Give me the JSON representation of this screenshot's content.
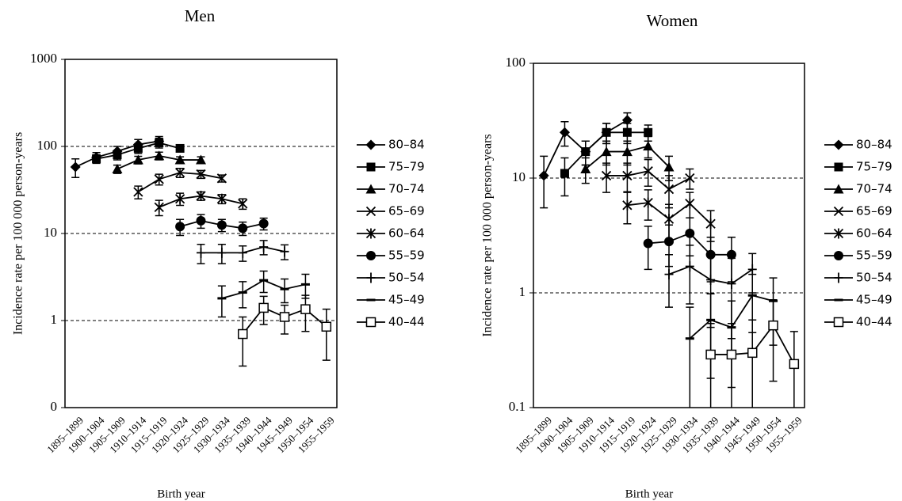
{
  "chart_data": [
    {
      "type": "line",
      "title": "Men",
      "xlabel": "Birth year",
      "ylabel": "Incidence rate per 100 000 person-years",
      "categories": [
        "1895–1899",
        "1900–1904",
        "1905–1909",
        "1910–1914",
        "1915–1919",
        "1920–1924",
        "1925–1929",
        "1930–1934",
        "1935–1939",
        "1940–1944",
        "1945–1949",
        "1950–1954",
        "1955–1959"
      ],
      "ylim": [
        0.1,
        1000
      ],
      "yticks": [
        {
          "value": 0.1,
          "label": "0"
        },
        1,
        10,
        100,
        1000
      ],
      "log_y": true,
      "grid": true,
      "series": [
        {
          "name": "80–84",
          "color": "#000",
          "marker": "diamond",
          "values": [
            58,
            75,
            88,
            105,
            115,
            null,
            null,
            null,
            null,
            null,
            null,
            null,
            null
          ],
          "errors": [
            14,
            10,
            12,
            15,
            15,
            null,
            null,
            null,
            null,
            null,
            null,
            null,
            null
          ]
        },
        {
          "name": "75–79",
          "color": "#000",
          "marker": "square",
          "values": [
            null,
            72,
            80,
            95,
            110,
            95,
            null,
            null,
            null,
            null,
            null,
            null,
            null
          ],
          "errors": [
            null,
            8,
            10,
            12,
            14,
            8,
            null,
            null,
            null,
            null,
            null,
            null,
            null
          ]
        },
        {
          "name": "70–74",
          "color": "#000",
          "marker": "triangle",
          "values": [
            null,
            null,
            55,
            70,
            78,
            70,
            70,
            null,
            null,
            null,
            null,
            null,
            null
          ],
          "errors": [
            null,
            null,
            6,
            7,
            8,
            6,
            6,
            null,
            null,
            null,
            null,
            null,
            null
          ]
        },
        {
          "name": "65–69",
          "color": "#000",
          "marker": "x",
          "values": [
            null,
            null,
            null,
            30,
            42,
            50,
            48,
            43,
            null,
            null,
            null,
            null,
            null
          ],
          "errors": [
            null,
            null,
            null,
            5,
            6,
            6,
            5,
            4,
            null,
            null,
            null,
            null,
            null
          ]
        },
        {
          "name": "60–64",
          "color": "#000",
          "marker": "star",
          "values": [
            null,
            null,
            null,
            null,
            20,
            25,
            27,
            25,
            22,
            null,
            null,
            null,
            null
          ],
          "errors": [
            null,
            null,
            null,
            null,
            4,
            4,
            3,
            3,
            3,
            null,
            null,
            null,
            null
          ]
        },
        {
          "name": "55–59",
          "color": "#000",
          "marker": "circle",
          "values": [
            null,
            null,
            null,
            null,
            null,
            12,
            14,
            12.5,
            11.5,
            13,
            null,
            null,
            null
          ],
          "errors": [
            null,
            null,
            null,
            null,
            null,
            2.5,
            2.5,
            2,
            2,
            2,
            null,
            null,
            null
          ]
        },
        {
          "name": "50–54",
          "color": "#000",
          "marker": "plus",
          "values": [
            null,
            null,
            null,
            null,
            null,
            null,
            6,
            6,
            6,
            7,
            6.2,
            null,
            null
          ],
          "errors": [
            null,
            null,
            null,
            null,
            null,
            null,
            1.5,
            1.5,
            1.2,
            1.3,
            1.2,
            null,
            null
          ]
        },
        {
          "name": "45–49",
          "color": "#000",
          "marker": "dash",
          "values": [
            null,
            null,
            null,
            null,
            null,
            null,
            null,
            1.8,
            2.1,
            2.9,
            2.3,
            2.6,
            null
          ],
          "errors": [
            null,
            null,
            null,
            null,
            null,
            null,
            null,
            0.7,
            0.7,
            0.8,
            0.7,
            0.8,
            null
          ]
        },
        {
          "name": "40–44",
          "color": "#000",
          "marker": "open-square",
          "values": [
            null,
            null,
            null,
            null,
            null,
            null,
            null,
            null,
            0.7,
            1.4,
            1.1,
            1.35,
            0.85
          ],
          "errors": [
            null,
            null,
            null,
            null,
            null,
            null,
            null,
            null,
            0.4,
            0.5,
            0.4,
            0.6,
            0.5
          ]
        }
      ]
    },
    {
      "type": "line",
      "title": "Women",
      "xlabel": "Birth year",
      "ylabel": "Incidence rate per 100 000 person-years",
      "categories": [
        "1895–1899",
        "1900–1904",
        "1905–1909",
        "1910–1914",
        "1915–1919",
        "1920–1924",
        "1925–1929",
        "1930–1934",
        "1935–1939",
        "1940–1944",
        "1945–1949",
        "1950–1954",
        "1955–1959"
      ],
      "ylim": [
        0.1,
        100
      ],
      "yticks": [
        0.1,
        1,
        10,
        100
      ],
      "log_y": true,
      "grid": true,
      "series": [
        {
          "name": "80–84",
          "color": "#000",
          "marker": "diamond",
          "values": [
            10.5,
            25,
            17,
            25,
            32,
            null,
            null,
            null,
            null,
            null,
            null,
            null,
            null
          ],
          "errors": [
            5,
            6,
            4,
            5,
            5,
            null,
            null,
            null,
            null,
            null,
            null,
            null,
            null
          ]
        },
        {
          "name": "75–79",
          "color": "#000",
          "marker": "square",
          "values": [
            null,
            11,
            17,
            25,
            25,
            25,
            null,
            null,
            null,
            null,
            null,
            null,
            null
          ],
          "errors": [
            null,
            4,
            4,
            5,
            5,
            4,
            null,
            null,
            null,
            null,
            null,
            null,
            null
          ]
        },
        {
          "name": "70–74",
          "color": "#000",
          "marker": "triangle",
          "values": [
            null,
            null,
            12,
            17,
            17,
            19,
            12.5,
            null,
            null,
            null,
            null,
            null,
            null
          ],
          "errors": [
            null,
            null,
            3,
            4,
            4,
            4,
            3,
            null,
            null,
            null,
            null,
            null,
            null
          ]
        },
        {
          "name": "65–69",
          "color": "#000",
          "marker": "x",
          "values": [
            null,
            null,
            null,
            10.5,
            10.5,
            11.5,
            8,
            10,
            null,
            null,
            null,
            null,
            null
          ],
          "errors": [
            null,
            null,
            null,
            3,
            3,
            3,
            2.5,
            2,
            null,
            null,
            null,
            null,
            null
          ]
        },
        {
          "name": "60–64",
          "color": "#000",
          "marker": "star",
          "values": [
            null,
            null,
            null,
            null,
            5.8,
            6.1,
            4.4,
            6,
            4,
            null,
            null,
            null,
            null
          ],
          "errors": [
            null,
            null,
            null,
            null,
            1.8,
            1.8,
            1.5,
            1.5,
            1.2,
            null,
            null,
            null,
            null
          ]
        },
        {
          "name": "55–59",
          "color": "#000",
          "marker": "circle",
          "values": [
            null,
            null,
            null,
            null,
            null,
            2.7,
            2.8,
            3.3,
            2.15,
            2.15,
            null,
            null,
            null
          ],
          "errors": [
            null,
            null,
            null,
            null,
            null,
            1.1,
            1.1,
            1.2,
            0.9,
            0.9,
            null,
            null,
            null
          ]
        },
        {
          "name": "50–54",
          "color": "#000",
          "marker": "plus",
          "values": [
            null,
            null,
            null,
            null,
            null,
            null,
            1.45,
            1.7,
            1.3,
            1.2,
            1.6,
            null,
            null
          ],
          "errors": [
            null,
            null,
            null,
            null,
            null,
            null,
            0.7,
            0.9,
            0.8,
            0.8,
            0.6,
            null,
            null
          ]
        },
        {
          "name": "45–49",
          "color": "#000",
          "marker": "dash",
          "values": [
            null,
            null,
            null,
            null,
            null,
            null,
            null,
            0.4,
            0.58,
            0.5,
            0.95,
            0.85,
            null
          ],
          "errors": [
            null,
            null,
            null,
            null,
            null,
            null,
            null,
            0.35,
            0.4,
            0.35,
            0.5,
            0.5,
            null
          ]
        },
        {
          "name": "40–44",
          "color": "#000",
          "marker": "open-square",
          "values": [
            null,
            null,
            null,
            null,
            null,
            null,
            null,
            null,
            0.29,
            0.29,
            0.3,
            0.52,
            0.24
          ],
          "errors": [
            null,
            null,
            null,
            null,
            null,
            null,
            null,
            null,
            0.25,
            0.25,
            0.28,
            0.35,
            0.22
          ]
        }
      ]
    }
  ]
}
